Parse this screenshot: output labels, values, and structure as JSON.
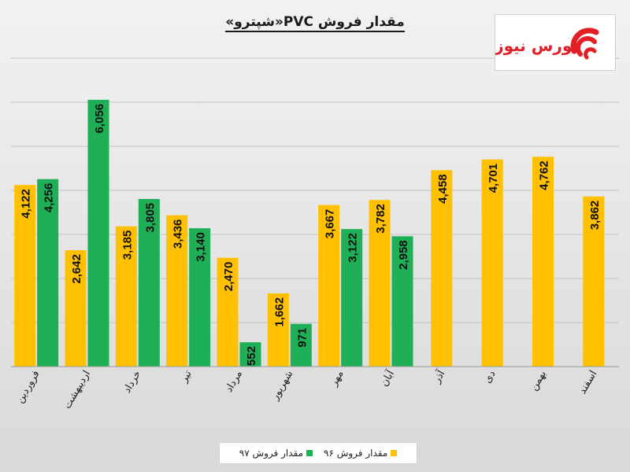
{
  "chart_data": {
    "type": "bar",
    "title": "مقدار فروش  PVC«شپترو»",
    "categories": [
      "فروردین",
      "اردیبهشت",
      "خرداد",
      "تیر",
      "مرداد",
      "شهریور",
      "مهر",
      "آبان",
      "آذر",
      "دی",
      "بهمن",
      "اسفند"
    ],
    "series": [
      {
        "name": "مقدار فروش ۹۶",
        "color": "#ffc000",
        "values": [
          4122,
          2642,
          3185,
          3436,
          2470,
          1662,
          3667,
          3782,
          4458,
          4701,
          4762,
          3862
        ],
        "labels": [
          "4,122",
          "2,642",
          "3,185",
          "3,436",
          "2,470",
          "1,662",
          "3,667",
          "3,782",
          "4,458",
          "4,701",
          "4,762",
          "3,862"
        ]
      },
      {
        "name": "مقدار فروش ۹۷",
        "color": "#1fb057",
        "values": [
          4256,
          6056,
          3805,
          3140,
          552,
          971,
          3122,
          2958,
          null,
          null,
          null,
          null
        ],
        "labels": [
          "4,256",
          "6,056",
          "3,805",
          "3,140",
          "552",
          "971",
          "3,122",
          "2,958",
          null,
          null,
          null,
          null
        ]
      }
    ],
    "ylim": [
      0,
      7000
    ],
    "grid": true,
    "legend": "bottom-center"
  },
  "logo": {
    "text": "بورس نیوز",
    "color": "#e31e24"
  }
}
